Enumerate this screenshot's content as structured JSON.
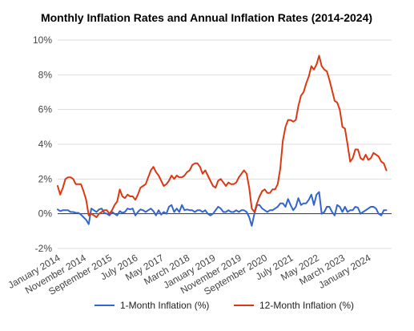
{
  "chart_data": {
    "type": "line",
    "title": "Monthly Inflation Rates and Annual Inflation Rates (2014-2024)",
    "xlabel": "",
    "ylabel": "",
    "x_range": [
      "2014-01",
      "2024-10"
    ],
    "ylim": [
      -2,
      10
    ],
    "y_ticks": [
      "-2%",
      "0%",
      "2%",
      "4%",
      "6%",
      "8%",
      "10%"
    ],
    "x_tick_labels": [
      "January 2014",
      "November 2014",
      "September 2015",
      "July 2016",
      "May 2017",
      "March 2018",
      "January 2019",
      "November 2019",
      "September 2020",
      "July 2021",
      "May 2022",
      "March 2023",
      "January 2024"
    ],
    "grid": "horizontal",
    "legend_position": "bottom",
    "colors": {
      "monthly": "#3366cc",
      "annual": "#dc3912",
      "gridline": "#dddddd",
      "zero_line": "#333333"
    },
    "series": [
      {
        "name": "1-Month Inflation (%)",
        "key": "monthly",
        "points": [
          [
            "2014-01",
            0.25
          ],
          [
            "2014-02",
            0.15
          ],
          [
            "2014-03",
            0.2
          ],
          [
            "2014-04",
            0.2
          ],
          [
            "2014-05",
            0.2
          ],
          [
            "2014-06",
            0.1
          ],
          [
            "2014-07",
            0.1
          ],
          [
            "2014-08",
            0.05
          ],
          [
            "2014-09",
            0.05
          ],
          [
            "2014-10",
            -0.05
          ],
          [
            "2014-11",
            -0.2
          ],
          [
            "2014-12",
            -0.35
          ],
          [
            "2015-01",
            -0.6
          ],
          [
            "2015-02",
            0.3
          ],
          [
            "2015-03",
            0.2
          ],
          [
            "2015-04",
            0.1
          ],
          [
            "2015-05",
            0.25
          ],
          [
            "2015-06",
            0.3
          ],
          [
            "2015-07",
            0.05
          ],
          [
            "2015-08",
            0.0
          ],
          [
            "2015-09",
            -0.1
          ],
          [
            "2015-10",
            0.1
          ],
          [
            "2015-11",
            0.0
          ],
          [
            "2015-12",
            -0.1
          ],
          [
            "2016-01",
            0.15
          ],
          [
            "2016-02",
            0.05
          ],
          [
            "2016-03",
            0.1
          ],
          [
            "2016-04",
            0.3
          ],
          [
            "2016-05",
            0.25
          ],
          [
            "2016-06",
            0.3
          ],
          [
            "2016-07",
            -0.1
          ],
          [
            "2016-08",
            0.1
          ],
          [
            "2016-09",
            0.25
          ],
          [
            "2016-10",
            0.2
          ],
          [
            "2016-11",
            0.1
          ],
          [
            "2016-12",
            0.2
          ],
          [
            "2017-01",
            0.3
          ],
          [
            "2017-02",
            0.15
          ],
          [
            "2017-03",
            -0.1
          ],
          [
            "2017-04",
            0.2
          ],
          [
            "2017-05",
            -0.05
          ],
          [
            "2017-06",
            0.1
          ],
          [
            "2017-07",
            0.0
          ],
          [
            "2017-08",
            0.4
          ],
          [
            "2017-09",
            0.5
          ],
          [
            "2017-10",
            0.1
          ],
          [
            "2017-11",
            0.3
          ],
          [
            "2017-12",
            0.1
          ],
          [
            "2018-01",
            0.5
          ],
          [
            "2018-02",
            0.2
          ],
          [
            "2018-03",
            0.25
          ],
          [
            "2018-04",
            0.2
          ],
          [
            "2018-05",
            0.2
          ],
          [
            "2018-06",
            0.1
          ],
          [
            "2018-07",
            0.2
          ],
          [
            "2018-08",
            0.2
          ],
          [
            "2018-09",
            0.1
          ],
          [
            "2018-10",
            0.2
          ],
          [
            "2018-11",
            0.0
          ],
          [
            "2018-12",
            -0.1
          ],
          [
            "2019-01",
            0.0
          ],
          [
            "2019-02",
            0.2
          ],
          [
            "2019-03",
            0.4
          ],
          [
            "2019-04",
            0.3
          ],
          [
            "2019-05",
            0.1
          ],
          [
            "2019-06",
            0.1
          ],
          [
            "2019-07",
            0.2
          ],
          [
            "2019-08",
            0.1
          ],
          [
            "2019-09",
            0.1
          ],
          [
            "2019-10",
            0.2
          ],
          [
            "2019-11",
            0.1
          ],
          [
            "2019-12",
            0.2
          ],
          [
            "2020-01",
            0.2
          ],
          [
            "2020-02",
            0.1
          ],
          [
            "2020-03",
            -0.2
          ],
          [
            "2020-04",
            -0.7
          ],
          [
            "2020-05",
            0.0
          ],
          [
            "2020-06",
            0.5
          ],
          [
            "2020-07",
            0.5
          ],
          [
            "2020-08",
            0.3
          ],
          [
            "2020-09",
            0.2
          ],
          [
            "2020-10",
            0.1
          ],
          [
            "2020-11",
            0.2
          ],
          [
            "2020-12",
            0.2
          ],
          [
            "2021-01",
            0.3
          ],
          [
            "2021-02",
            0.4
          ],
          [
            "2021-03",
            0.6
          ],
          [
            "2021-04",
            0.6
          ],
          [
            "2021-05",
            0.4
          ],
          [
            "2021-06",
            0.85
          ],
          [
            "2021-07",
            0.5
          ],
          [
            "2021-08",
            0.2
          ],
          [
            "2021-09",
            0.4
          ],
          [
            "2021-10",
            0.9
          ],
          [
            "2021-11",
            0.5
          ],
          [
            "2021-12",
            0.6
          ],
          [
            "2022-01",
            0.6
          ],
          [
            "2022-02",
            0.8
          ],
          [
            "2022-03",
            1.1
          ],
          [
            "2022-04",
            0.5
          ],
          [
            "2022-05",
            1.1
          ],
          [
            "2022-06",
            1.25
          ],
          [
            "2022-07",
            0.0
          ],
          [
            "2022-08",
            0.1
          ],
          [
            "2022-09",
            0.4
          ],
          [
            "2022-10",
            0.4
          ],
          [
            "2022-11",
            0.1
          ],
          [
            "2022-12",
            -0.1
          ],
          [
            "2023-01",
            0.5
          ],
          [
            "2023-02",
            0.4
          ],
          [
            "2023-03",
            0.1
          ],
          [
            "2023-04",
            0.4
          ],
          [
            "2023-05",
            0.1
          ],
          [
            "2023-06",
            0.2
          ],
          [
            "2023-07",
            0.2
          ],
          [
            "2023-08",
            0.4
          ],
          [
            "2023-09",
            0.35
          ],
          [
            "2023-10",
            0.0
          ],
          [
            "2023-11",
            0.1
          ],
          [
            "2023-12",
            0.2
          ],
          [
            "2024-01",
            0.3
          ],
          [
            "2024-02",
            0.4
          ],
          [
            "2024-03",
            0.4
          ],
          [
            "2024-04",
            0.3
          ],
          [
            "2024-05",
            0.0
          ],
          [
            "2024-06",
            -0.1
          ],
          [
            "2024-07",
            0.2
          ],
          [
            "2024-08",
            0.2
          ]
        ]
      },
      {
        "name": "12-Month Inflation (%)",
        "key": "annual",
        "points": [
          [
            "2014-01",
            1.6
          ],
          [
            "2014-02",
            1.1
          ],
          [
            "2014-03",
            1.5
          ],
          [
            "2014-04",
            2.0
          ],
          [
            "2014-05",
            2.1
          ],
          [
            "2014-06",
            2.1
          ],
          [
            "2014-07",
            2.0
          ],
          [
            "2014-08",
            1.7
          ],
          [
            "2014-09",
            1.7
          ],
          [
            "2014-10",
            1.7
          ],
          [
            "2014-11",
            1.3
          ],
          [
            "2014-12",
            0.8
          ],
          [
            "2015-01",
            -0.1
          ],
          [
            "2015-02",
            0.0
          ],
          [
            "2015-03",
            -0.1
          ],
          [
            "2015-04",
            -0.2
          ],
          [
            "2015-05",
            0.0
          ],
          [
            "2015-06",
            0.1
          ],
          [
            "2015-07",
            0.2
          ],
          [
            "2015-08",
            0.2
          ],
          [
            "2015-09",
            0.0
          ],
          [
            "2015-10",
            0.2
          ],
          [
            "2015-11",
            0.5
          ],
          [
            "2015-12",
            0.7
          ],
          [
            "2016-01",
            1.4
          ],
          [
            "2016-02",
            1.0
          ],
          [
            "2016-03",
            0.9
          ],
          [
            "2016-04",
            1.1
          ],
          [
            "2016-05",
            1.0
          ],
          [
            "2016-06",
            1.0
          ],
          [
            "2016-07",
            0.8
          ],
          [
            "2016-08",
            1.1
          ],
          [
            "2016-09",
            1.5
          ],
          [
            "2016-10",
            1.6
          ],
          [
            "2016-11",
            1.7
          ],
          [
            "2016-12",
            2.1
          ],
          [
            "2017-01",
            2.5
          ],
          [
            "2017-02",
            2.7
          ],
          [
            "2017-03",
            2.4
          ],
          [
            "2017-04",
            2.2
          ],
          [
            "2017-05",
            1.9
          ],
          [
            "2017-06",
            1.6
          ],
          [
            "2017-07",
            1.7
          ],
          [
            "2017-08",
            1.9
          ],
          [
            "2017-09",
            2.2
          ],
          [
            "2017-10",
            2.0
          ],
          [
            "2017-11",
            2.2
          ],
          [
            "2017-12",
            2.1
          ],
          [
            "2018-01",
            2.1
          ],
          [
            "2018-02",
            2.2
          ],
          [
            "2018-03",
            2.4
          ],
          [
            "2018-04",
            2.5
          ],
          [
            "2018-05",
            2.8
          ],
          [
            "2018-06",
            2.9
          ],
          [
            "2018-07",
            2.9
          ],
          [
            "2018-08",
            2.7
          ],
          [
            "2018-09",
            2.3
          ],
          [
            "2018-10",
            2.5
          ],
          [
            "2018-11",
            2.2
          ],
          [
            "2018-12",
            1.9
          ],
          [
            "2019-01",
            1.6
          ],
          [
            "2019-02",
            1.5
          ],
          [
            "2019-03",
            1.9
          ],
          [
            "2019-04",
            2.0
          ],
          [
            "2019-05",
            1.8
          ],
          [
            "2019-06",
            1.6
          ],
          [
            "2019-07",
            1.8
          ],
          [
            "2019-08",
            1.7
          ],
          [
            "2019-09",
            1.7
          ],
          [
            "2019-10",
            1.8
          ],
          [
            "2019-11",
            2.1
          ],
          [
            "2019-12",
            2.3
          ],
          [
            "2020-01",
            2.5
          ],
          [
            "2020-02",
            2.3
          ],
          [
            "2020-03",
            1.5
          ],
          [
            "2020-04",
            0.3
          ],
          [
            "2020-05",
            0.1
          ],
          [
            "2020-06",
            0.6
          ],
          [
            "2020-07",
            1.0
          ],
          [
            "2020-08",
            1.3
          ],
          [
            "2020-09",
            1.4
          ],
          [
            "2020-10",
            1.2
          ],
          [
            "2020-11",
            1.2
          ],
          [
            "2020-12",
            1.4
          ],
          [
            "2021-01",
            1.4
          ],
          [
            "2021-02",
            1.7
          ],
          [
            "2021-03",
            2.6
          ],
          [
            "2021-04",
            4.2
          ],
          [
            "2021-05",
            5.0
          ],
          [
            "2021-06",
            5.4
          ],
          [
            "2021-07",
            5.4
          ],
          [
            "2021-08",
            5.3
          ],
          [
            "2021-09",
            5.4
          ],
          [
            "2021-10",
            6.2
          ],
          [
            "2021-11",
            6.8
          ],
          [
            "2021-12",
            7.0
          ],
          [
            "2022-01",
            7.5
          ],
          [
            "2022-02",
            7.9
          ],
          [
            "2022-03",
            8.5
          ],
          [
            "2022-04",
            8.3
          ],
          [
            "2022-05",
            8.6
          ],
          [
            "2022-06",
            9.1
          ],
          [
            "2022-07",
            8.5
          ],
          [
            "2022-08",
            8.3
          ],
          [
            "2022-09",
            8.2
          ],
          [
            "2022-10",
            7.7
          ],
          [
            "2022-11",
            7.1
          ],
          [
            "2022-12",
            6.5
          ],
          [
            "2023-01",
            6.4
          ],
          [
            "2023-02",
            6.0
          ],
          [
            "2023-03",
            5.0
          ],
          [
            "2023-04",
            4.9
          ],
          [
            "2023-05",
            4.0
          ],
          [
            "2023-06",
            3.0
          ],
          [
            "2023-07",
            3.2
          ],
          [
            "2023-08",
            3.7
          ],
          [
            "2023-09",
            3.7
          ],
          [
            "2023-10",
            3.2
          ],
          [
            "2023-11",
            3.1
          ],
          [
            "2023-12",
            3.4
          ],
          [
            "2024-01",
            3.1
          ],
          [
            "2024-02",
            3.2
          ],
          [
            "2024-03",
            3.5
          ],
          [
            "2024-04",
            3.4
          ],
          [
            "2024-05",
            3.3
          ],
          [
            "2024-06",
            3.0
          ],
          [
            "2024-07",
            2.9
          ],
          [
            "2024-08",
            2.5
          ]
        ]
      }
    ]
  }
}
